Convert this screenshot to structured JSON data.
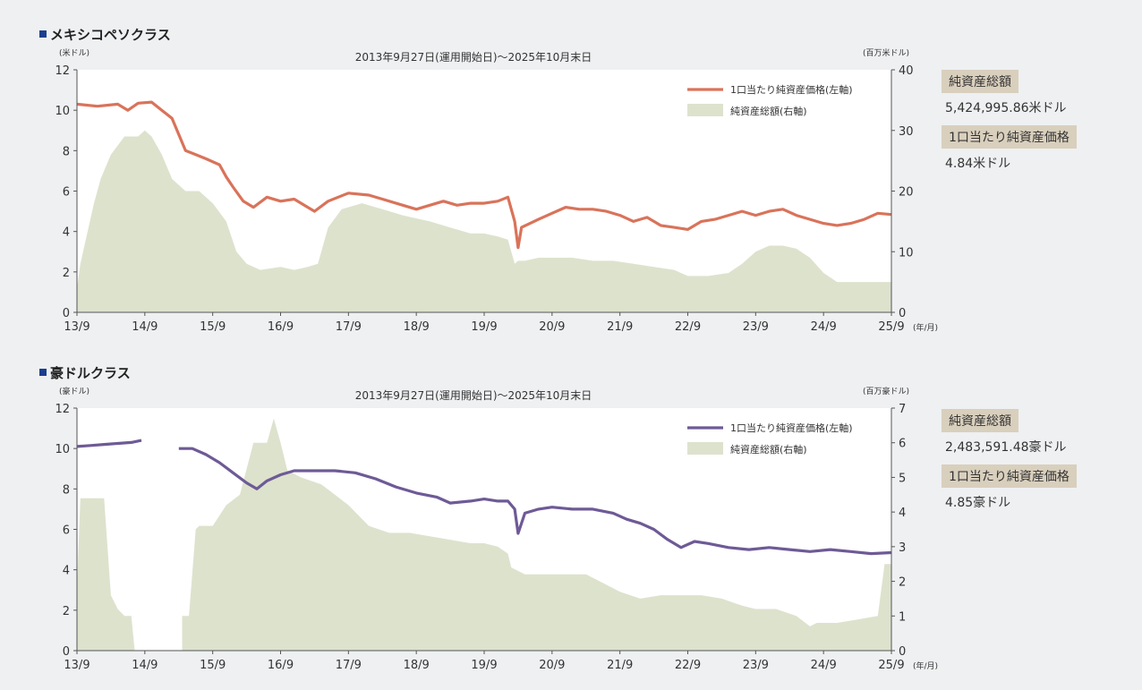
{
  "chart_data": [
    {
      "type": "line",
      "section_title": "メキシコペソクラス",
      "period": "2013年9月27日(運用開始日)～2025年10月末日",
      "left_unit": "(米ドル)",
      "right_unit": "(百万米ドル)",
      "x_unit": "(年/月)",
      "categories": [
        "13/9",
        "14/9",
        "15/9",
        "16/9",
        "17/9",
        "18/9",
        "19/9",
        "20/9",
        "21/9",
        "22/9",
        "23/9",
        "24/9",
        "25/9"
      ],
      "ylim": [
        0,
        12
      ],
      "y_ticks": [
        "0",
        "2",
        "4",
        "6",
        "8",
        "10",
        "12"
      ],
      "y2lim": [
        0,
        40
      ],
      "y2_ticks": [
        "0",
        "10",
        "20",
        "30",
        "40"
      ],
      "legend": {
        "line": "1口当たり純資産価格(左軸)",
        "area": "純資産総額(右軸)"
      },
      "colors": {
        "line": "#d9735a",
        "area": "#dde2cd"
      },
      "series": [
        {
          "name": "1口当たり純資産価格(左軸)",
          "axis": "left",
          "style": "line",
          "x": [
            0,
            0.3,
            0.6,
            0.75,
            0.9,
            1.1,
            1.25,
            1.4,
            1.6,
            1.75,
            1.9,
            2.1,
            2.2,
            2.3,
            2.45,
            2.6,
            2.8,
            3.0,
            3.2,
            3.5,
            3.7,
            4.0,
            4.3,
            4.5,
            4.8,
            5.0,
            5.2,
            5.4,
            5.6,
            5.8,
            6.0,
            6.2,
            6.35,
            6.45,
            6.5,
            6.55,
            6.8,
            7.0,
            7.2,
            7.4,
            7.6,
            7.8,
            8.0,
            8.2,
            8.4,
            8.6,
            8.8,
            9.0,
            9.2,
            9.4,
            9.6,
            9.8,
            10.0,
            10.2,
            10.4,
            10.6,
            10.8,
            11.0,
            11.2,
            11.4,
            11.6,
            11.8,
            12.0
          ],
          "values": [
            10.3,
            10.2,
            10.3,
            10.0,
            10.35,
            10.4,
            10.0,
            9.6,
            8.0,
            7.8,
            7.6,
            7.3,
            6.7,
            6.2,
            5.5,
            5.2,
            5.7,
            5.5,
            5.6,
            5.0,
            5.5,
            5.9,
            5.8,
            5.6,
            5.3,
            5.1,
            5.3,
            5.5,
            5.3,
            5.4,
            5.4,
            5.5,
            5.7,
            4.5,
            3.2,
            4.2,
            4.6,
            4.9,
            5.2,
            5.1,
            5.1,
            5.0,
            4.8,
            4.5,
            4.7,
            4.3,
            4.2,
            4.1,
            4.5,
            4.6,
            4.8,
            5.0,
            4.8,
            5.0,
            5.1,
            4.8,
            4.6,
            4.4,
            4.3,
            4.4,
            4.6,
            4.9,
            4.84
          ]
        },
        {
          "name": "純資産総額(右軸)",
          "axis": "right",
          "style": "area",
          "x": [
            0,
            0.05,
            0.15,
            0.25,
            0.35,
            0.5,
            0.7,
            0.9,
            1.0,
            1.1,
            1.25,
            1.4,
            1.6,
            1.8,
            2.0,
            2.2,
            2.35,
            2.5,
            2.7,
            3.0,
            3.2,
            3.4,
            3.55,
            3.7,
            3.9,
            4.2,
            4.5,
            4.8,
            5.2,
            5.5,
            5.8,
            6.0,
            6.2,
            6.35,
            6.45,
            6.5,
            6.6,
            6.8,
            7.0,
            7.3,
            7.6,
            7.9,
            8.2,
            8.5,
            8.8,
            9.0,
            9.3,
            9.6,
            9.8,
            10.0,
            10.2,
            10.4,
            10.6,
            10.8,
            11.0,
            11.2,
            11.4,
            11.6,
            11.8,
            12.0
          ],
          "values": [
            4,
            8,
            13,
            18,
            22,
            26,
            29,
            29,
            30,
            29,
            26,
            22,
            20,
            20,
            18,
            15,
            10,
            8,
            7,
            7.5,
            7,
            7.5,
            8,
            14,
            17,
            18,
            17,
            16,
            15,
            14,
            13,
            13,
            12.5,
            12,
            8,
            8.5,
            8.5,
            9,
            9,
            9,
            8.5,
            8.5,
            8,
            7.5,
            7,
            6,
            6,
            6.5,
            8,
            10,
            11,
            11,
            10.5,
            9,
            6.5,
            5,
            5,
            5,
            5,
            5
          ]
        }
      ]
    },
    {
      "type": "line",
      "section_title": "豪ドルクラス",
      "period": "2013年9月27日(運用開始日)～2025年10月末日",
      "left_unit": "(豪ドル)",
      "right_unit": "(百万豪ドル)",
      "x_unit": "(年/月)",
      "categories": [
        "13/9",
        "14/9",
        "15/9",
        "16/9",
        "17/9",
        "18/9",
        "19/9",
        "20/9",
        "21/9",
        "22/9",
        "23/9",
        "24/9",
        "25/9"
      ],
      "ylim": [
        0,
        12
      ],
      "y_ticks": [
        "0",
        "2",
        "4",
        "6",
        "8",
        "10",
        "12"
      ],
      "y2lim": [
        0,
        7
      ],
      "y2_ticks": [
        "0",
        "1",
        "2",
        "3",
        "4",
        "5",
        "6",
        "7"
      ],
      "legend": {
        "line": "1口当たり純資産価格(左軸)",
        "area": "純資産総額(右軸)"
      },
      "colors": {
        "line": "#6e5a96",
        "area": "#dde2cd"
      },
      "series": [
        {
          "name": "1口当たり純資産価格(左軸)",
          "axis": "left",
          "style": "line",
          "segments": [
            {
              "x": [
                0,
                0.2,
                0.4,
                0.6,
                0.8,
                0.95
              ],
              "values": [
                10.1,
                10.15,
                10.2,
                10.25,
                10.3,
                10.4
              ]
            },
            {
              "x": [
                1.5,
                1.7,
                1.9,
                2.1,
                2.3,
                2.5,
                2.65,
                2.8,
                3.0,
                3.2,
                3.5,
                3.8,
                4.1,
                4.4,
                4.7,
                5.0,
                5.3,
                5.5,
                5.8,
                6.0,
                6.2,
                6.35,
                6.45,
                6.5,
                6.6,
                6.8,
                7.0,
                7.3,
                7.6,
                7.9,
                8.1,
                8.3,
                8.5,
                8.7,
                8.9,
                9.1,
                9.3,
                9.6,
                9.9,
                10.2,
                10.5,
                10.8,
                11.1,
                11.4,
                11.7,
                12.0
              ],
              "values": [
                10.0,
                10.0,
                9.7,
                9.3,
                8.8,
                8.3,
                8.0,
                8.4,
                8.7,
                8.9,
                8.9,
                8.9,
                8.8,
                8.5,
                8.1,
                7.8,
                7.6,
                7.3,
                7.4,
                7.5,
                7.4,
                7.4,
                7.0,
                5.8,
                6.8,
                7.0,
                7.1,
                7.0,
                7.0,
                6.8,
                6.5,
                6.3,
                6.0,
                5.5,
                5.1,
                5.4,
                5.3,
                5.1,
                5.0,
                5.1,
                5.0,
                4.9,
                5.0,
                4.9,
                4.8,
                4.85
              ]
            }
          ]
        },
        {
          "name": "純資産総額(右軸)",
          "axis": "right",
          "style": "area",
          "segments": [
            {
              "x": [
                0,
                0.05,
                0.1,
                0.4,
                0.5,
                0.6,
                0.7,
                0.8,
                0.85
              ],
              "values": [
                1.8,
                4.4,
                4.4,
                4.4,
                1.6,
                1.2,
                1.0,
                1.0,
                0
              ],
              "close_at": 0.85
            },
            {
              "x": [
                1.55,
                1.65,
                1.75,
                1.8,
                2.0,
                2.2,
                2.4,
                2.6,
                2.8,
                2.9,
                3.0,
                3.1,
                3.3,
                3.6,
                3.8,
                4.0,
                4.3,
                4.6,
                4.9,
                5.2,
                5.5,
                5.8,
                6.0,
                6.2,
                6.35,
                6.4,
                6.6,
                7.0,
                7.5,
                7.8,
                8.0,
                8.3,
                8.6,
                8.9,
                9.2,
                9.5,
                9.8,
                10.0,
                10.3,
                10.6,
                10.8,
                10.9,
                11.2,
                11.5,
                11.8,
                11.9,
                12.0
              ],
              "values": [
                1.0,
                1.0,
                3.5,
                3.6,
                3.6,
                4.2,
                4.5,
                6.0,
                6.0,
                6.7,
                6.0,
                5.2,
                5.0,
                4.8,
                4.5,
                4.2,
                3.6,
                3.4,
                3.4,
                3.3,
                3.2,
                3.1,
                3.1,
                3.0,
                2.8,
                2.4,
                2.2,
                2.2,
                2.2,
                1.9,
                1.7,
                1.5,
                1.6,
                1.6,
                1.6,
                1.5,
                1.3,
                1.2,
                1.2,
                1.0,
                0.7,
                0.8,
                0.8,
                0.9,
                1.0,
                2.5,
                2.5
              ]
            }
          ]
        }
      ]
    }
  ],
  "side": [
    {
      "total_label": "純資産総額",
      "total_value": "5,424,995.86米ドル",
      "nav_label": "1口当たり純資産価格",
      "nav_value": "4.84米ドル"
    },
    {
      "total_label": "純資産総額",
      "total_value": "2,483,591.48豪ドル",
      "nav_label": "1口当たり純資産価格",
      "nav_value": "4.85豪ドル"
    }
  ]
}
